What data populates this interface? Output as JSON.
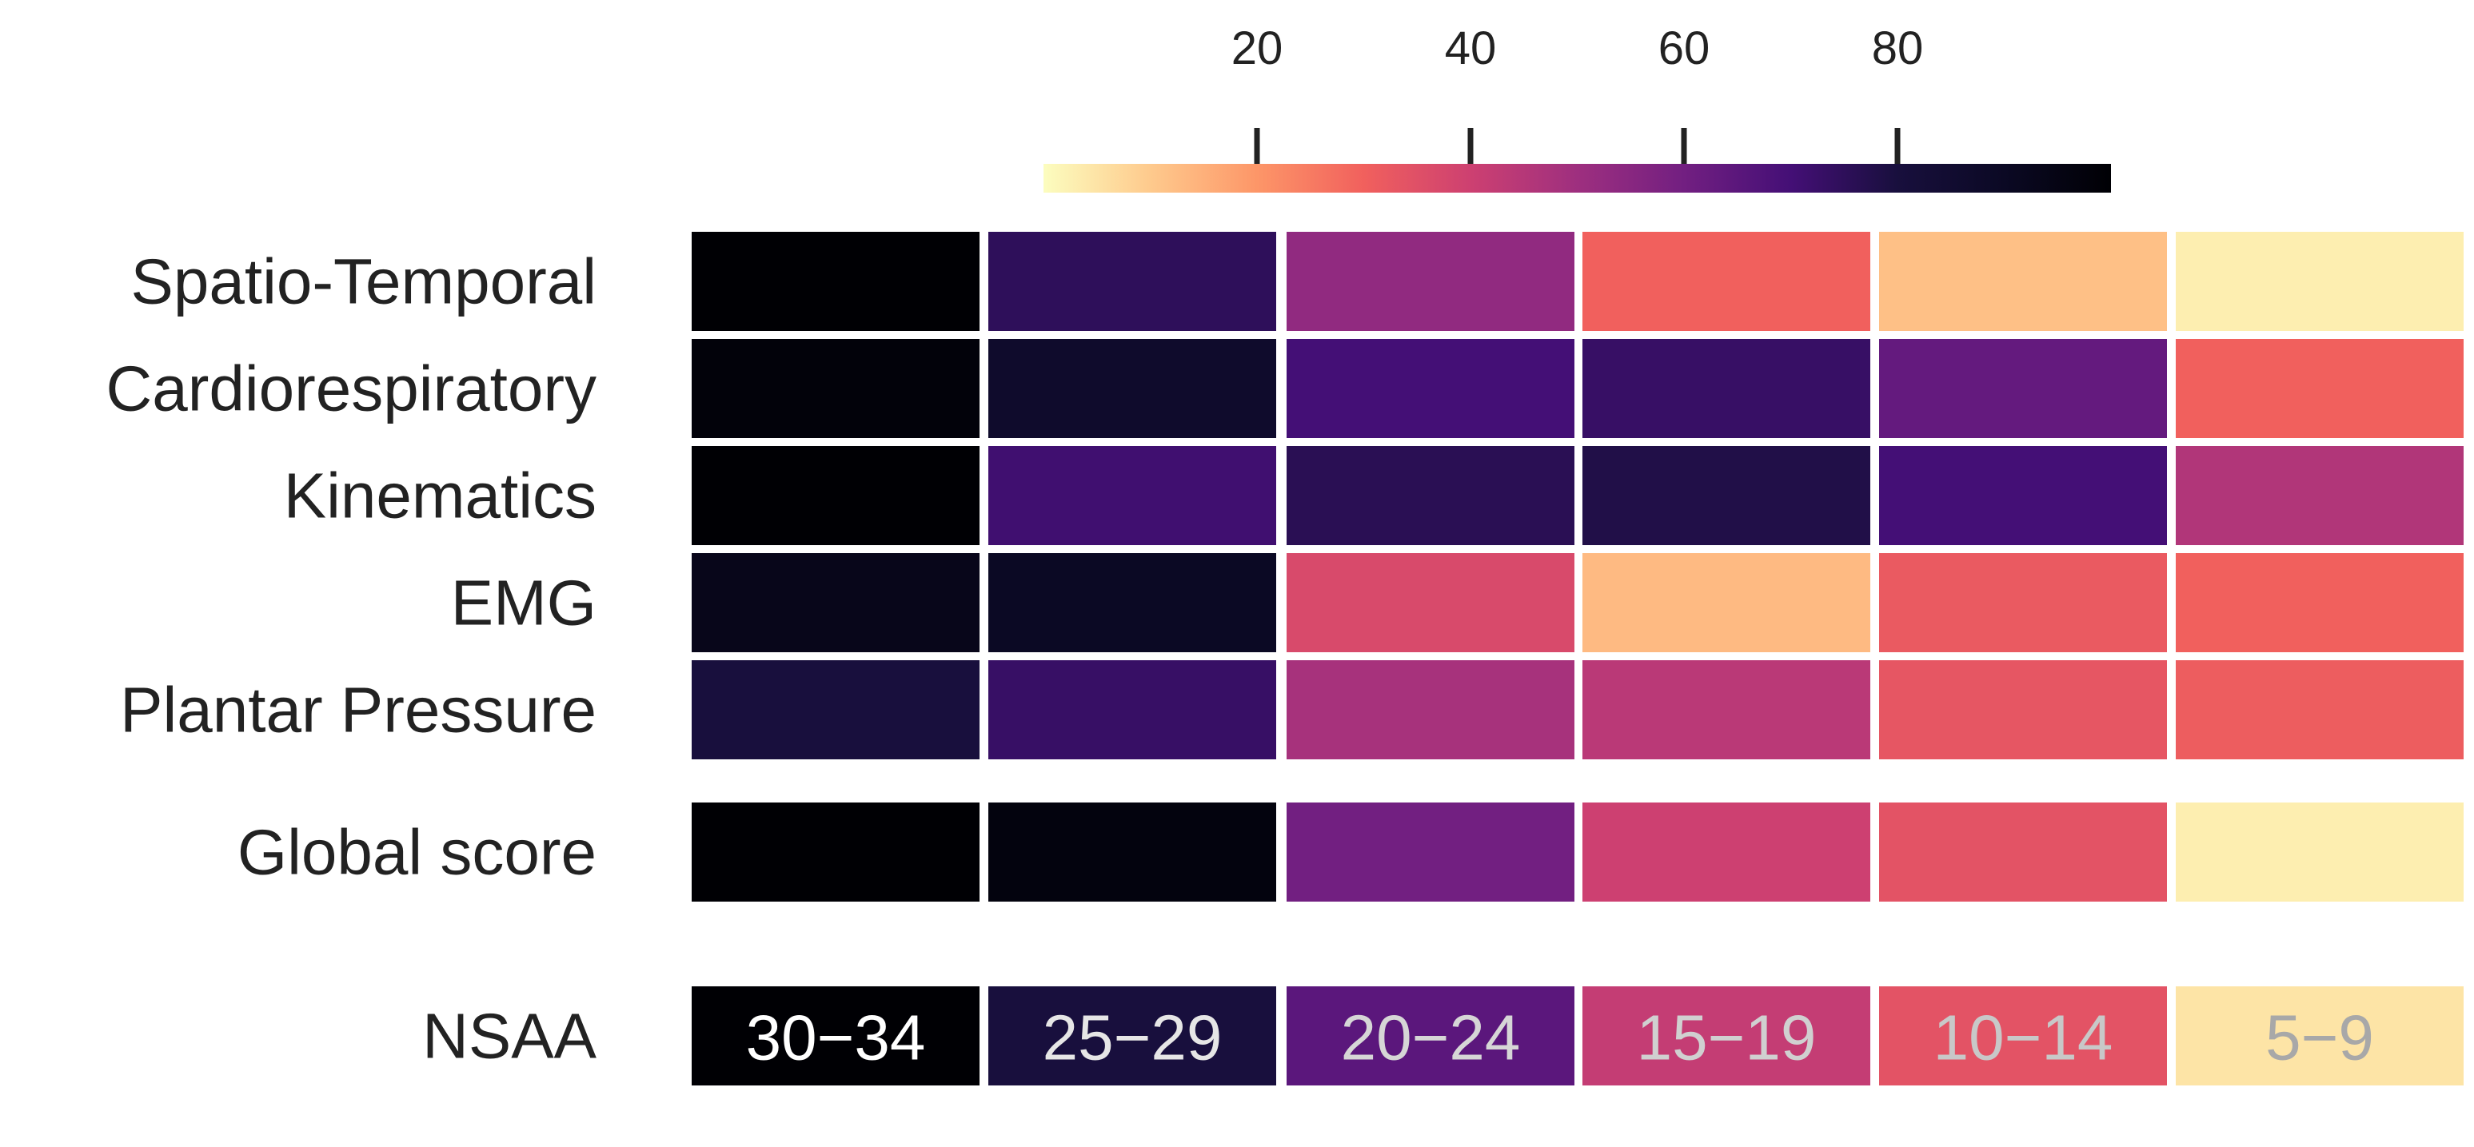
{
  "chart_data": {
    "type": "heatmap",
    "title": "",
    "xlabel": "",
    "ylabel": "",
    "colormap": "magma_r",
    "colorbar": {
      "range": [
        0,
        100
      ],
      "ticks": [
        20,
        40,
        60,
        80
      ],
      "tick_labels": [
        "20",
        "40",
        "60",
        "80"
      ],
      "placement": "top"
    },
    "rows": [
      "Spatio-Temporal",
      "Cardiorespiratory",
      "Kinematics",
      "EMG",
      "Plantar Pressure",
      "Global score",
      "NSAA"
    ],
    "columns": [
      "30−34",
      "25−29",
      "20−24",
      "15−19",
      "10−14",
      "5−9"
    ],
    "values": [
      [
        100,
        75,
        53,
        30,
        12,
        3
      ],
      [
        98,
        87,
        70,
        73,
        63,
        30
      ],
      [
        100,
        71,
        76,
        78,
        70,
        46
      ],
      [
        93,
        90,
        37,
        13,
        32,
        30
      ],
      [
        80,
        73,
        48,
        44,
        33,
        31
      ],
      [
        100,
        97,
        60,
        40,
        34,
        3
      ],
      [
        100,
        80,
        65,
        42,
        34,
        5
      ]
    ],
    "cell_annotations_row": "NSAA",
    "cell_annotation_colors": [
      "#ffffff",
      "#e6e6e6",
      "#d6d6d6",
      "#d0d0d0",
      "#c8c8c8",
      "#a8a8a8"
    ]
  }
}
